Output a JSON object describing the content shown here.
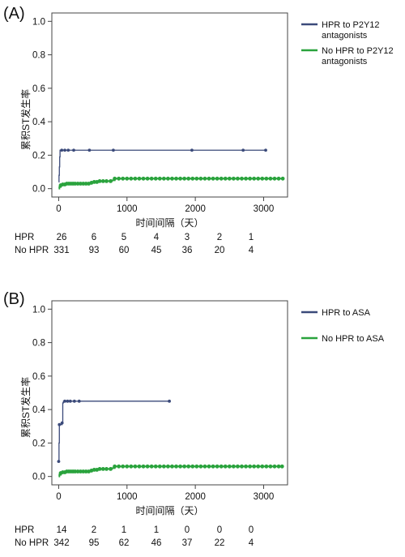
{
  "chart_data": [
    {
      "type": "line",
      "step": true,
      "panel_label": "(A)",
      "xlabel": "时间间隔（天）",
      "ylabel": "累积ST发生率",
      "xlim": [
        -100,
        3350
      ],
      "ylim": [
        -0.05,
        1.05
      ],
      "xticks": [
        0,
        1000,
        2000,
        3000
      ],
      "yticks": [
        0.0,
        0.2,
        0.4,
        0.6,
        0.8,
        1.0
      ],
      "xtick_labels": [
        "0",
        "1000",
        "2000",
        "3000"
      ],
      "ytick_labels": [
        "0.0",
        "0.2",
        "0.4",
        "0.6",
        "0.8",
        "1.0"
      ],
      "legend_position": "right-top",
      "series": [
        {
          "name": "HPR to P2Y12 antagonists",
          "color": "#3b4a7a",
          "points": [
            [
              0,
              0.04
            ],
            [
              5,
              0.08
            ],
            [
              10,
              0.13
            ],
            [
              15,
              0.19
            ],
            [
              20,
              0.23
            ],
            [
              3030,
              0.23
            ]
          ],
          "censor": [
            45,
            90,
            140,
            220,
            450,
            800,
            1950,
            2700,
            3030
          ]
        },
        {
          "name": "No HPR to P2Y12 antagonists",
          "color": "#2aa33d",
          "points": [
            [
              0,
              0.0
            ],
            [
              10,
              0.01
            ],
            [
              30,
              0.02
            ],
            [
              60,
              0.025
            ],
            [
              100,
              0.03
            ],
            [
              450,
              0.035
            ],
            [
              520,
              0.04
            ],
            [
              600,
              0.045
            ],
            [
              780,
              0.05
            ],
            [
              820,
              0.06
            ],
            [
              3280,
              0.06
            ]
          ],
          "censor": [
            30,
            60,
            90,
            120,
            150,
            180,
            210,
            240,
            280,
            320,
            360,
            400,
            440,
            480,
            520,
            560,
            600,
            650,
            700,
            760,
            820,
            880,
            940,
            1000,
            1060,
            1120,
            1180,
            1240,
            1300,
            1360,
            1420,
            1480,
            1540,
            1600,
            1660,
            1720,
            1780,
            1840,
            1900,
            1960,
            2020,
            2080,
            2140,
            2200,
            2260,
            2320,
            2380,
            2440,
            2500,
            2560,
            2620,
            2680,
            2740,
            2800,
            2860,
            2920,
            2980,
            3040,
            3100,
            3160,
            3220,
            3280
          ]
        }
      ],
      "risk_table": {
        "rows": [
          {
            "label": "HPR",
            "values": [
              "26",
              "6",
              "5",
              "4",
              "3",
              "2",
              "1"
            ]
          },
          {
            "label": "No HPR",
            "values": [
              "331",
              "93",
              "60",
              "45",
              "36",
              "20",
              "4"
            ]
          }
        ]
      }
    },
    {
      "type": "line",
      "step": true,
      "panel_label": "(B)",
      "xlabel": "时间间隔（天）",
      "ylabel": "累积ST发生率",
      "xlim": [
        -100,
        3350
      ],
      "ylim": [
        -0.05,
        1.05
      ],
      "xticks": [
        0,
        1000,
        2000,
        3000
      ],
      "yticks": [
        0.0,
        0.2,
        0.4,
        0.6,
        0.8,
        1.0
      ],
      "xtick_labels": [
        "0",
        "1000",
        "2000",
        "3000"
      ],
      "ytick_labels": [
        "0.0",
        "0.2",
        "0.4",
        "0.6",
        "0.8",
        "1.0"
      ],
      "legend_position": "right-top",
      "series": [
        {
          "name": "HPR to ASA",
          "color": "#3b4a7a",
          "points": [
            [
              0,
              0.09
            ],
            [
              5,
              0.2
            ],
            [
              10,
              0.31
            ],
            [
              50,
              0.32
            ],
            [
              60,
              0.44
            ],
            [
              70,
              0.45
            ],
            [
              1620,
              0.45
            ]
          ],
          "censor": [
            0,
            10,
            50,
            90,
            130,
            170,
            230,
            300,
            1620
          ]
        },
        {
          "name": "No HPR to ASA",
          "color": "#2aa33d",
          "points": [
            [
              0,
              0.0
            ],
            [
              10,
              0.01
            ],
            [
              30,
              0.02
            ],
            [
              60,
              0.025
            ],
            [
              100,
              0.03
            ],
            [
              450,
              0.035
            ],
            [
              520,
              0.04
            ],
            [
              600,
              0.045
            ],
            [
              780,
              0.05
            ],
            [
              820,
              0.06
            ],
            [
              3270,
              0.06
            ]
          ],
          "censor": [
            30,
            60,
            90,
            120,
            150,
            180,
            210,
            240,
            280,
            320,
            360,
            400,
            440,
            480,
            520,
            560,
            600,
            650,
            700,
            760,
            820,
            880,
            940,
            1000,
            1060,
            1120,
            1180,
            1240,
            1300,
            1360,
            1420,
            1480,
            1540,
            1600,
            1660,
            1720,
            1780,
            1840,
            1900,
            1960,
            2020,
            2080,
            2140,
            2200,
            2260,
            2320,
            2380,
            2440,
            2500,
            2560,
            2620,
            2680,
            2740,
            2800,
            2860,
            2920,
            2980,
            3040,
            3100,
            3160,
            3220,
            3270
          ]
        }
      ],
      "risk_table": {
        "rows": [
          {
            "label": "HPR",
            "values": [
              "14",
              "2",
              "1",
              "1",
              "0",
              "0",
              "0"
            ]
          },
          {
            "label": "No HPR",
            "values": [
              "342",
              "95",
              "62",
              "46",
              "37",
              "22",
              "4"
            ]
          }
        ]
      }
    }
  ]
}
